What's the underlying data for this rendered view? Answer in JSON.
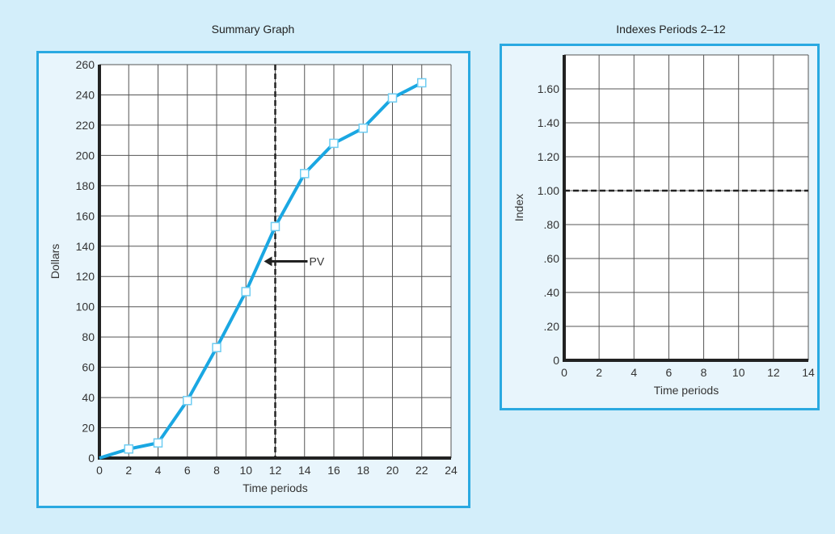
{
  "chart_data": [
    {
      "type": "line",
      "title": "Summary Graph",
      "xlabel": "Time periods",
      "ylabel": "Dollars",
      "xlim": [
        0,
        24
      ],
      "ylim": [
        0,
        260
      ],
      "xticks": [
        0,
        2,
        4,
        6,
        8,
        10,
        12,
        14,
        16,
        18,
        20,
        22,
        24
      ],
      "yticks": [
        0,
        20,
        40,
        60,
        80,
        100,
        120,
        140,
        160,
        180,
        200,
        220,
        240,
        260
      ],
      "grid": true,
      "x": [
        0,
        2,
        4,
        6,
        8,
        10,
        12,
        14,
        16,
        18,
        20,
        22
      ],
      "y": [
        0,
        6,
        10,
        38,
        73,
        110,
        153,
        188,
        208,
        218,
        238,
        248
      ],
      "vline_x": 12,
      "annotation": {
        "text": "PV",
        "x": 12,
        "y": 130
      },
      "line_color": "#1aa7e2"
    },
    {
      "type": "line",
      "title": "Indexes Periods 2–12",
      "xlabel": "Time periods",
      "ylabel": "Index",
      "xlim": [
        0,
        14
      ],
      "ylim": [
        0,
        1.8
      ],
      "xticks": [
        0,
        2,
        4,
        6,
        8,
        10,
        12,
        14
      ],
      "yticks": [
        0,
        0.2,
        0.4,
        0.6,
        0.8,
        1.0,
        1.2,
        1.4,
        1.6
      ],
      "ytick_labels": [
        "0",
        ".20",
        ".40",
        ".60",
        ".80",
        "1.00",
        "1.20",
        "1.40",
        "1.60"
      ],
      "grid": true,
      "hline_y": 1.0
    }
  ]
}
